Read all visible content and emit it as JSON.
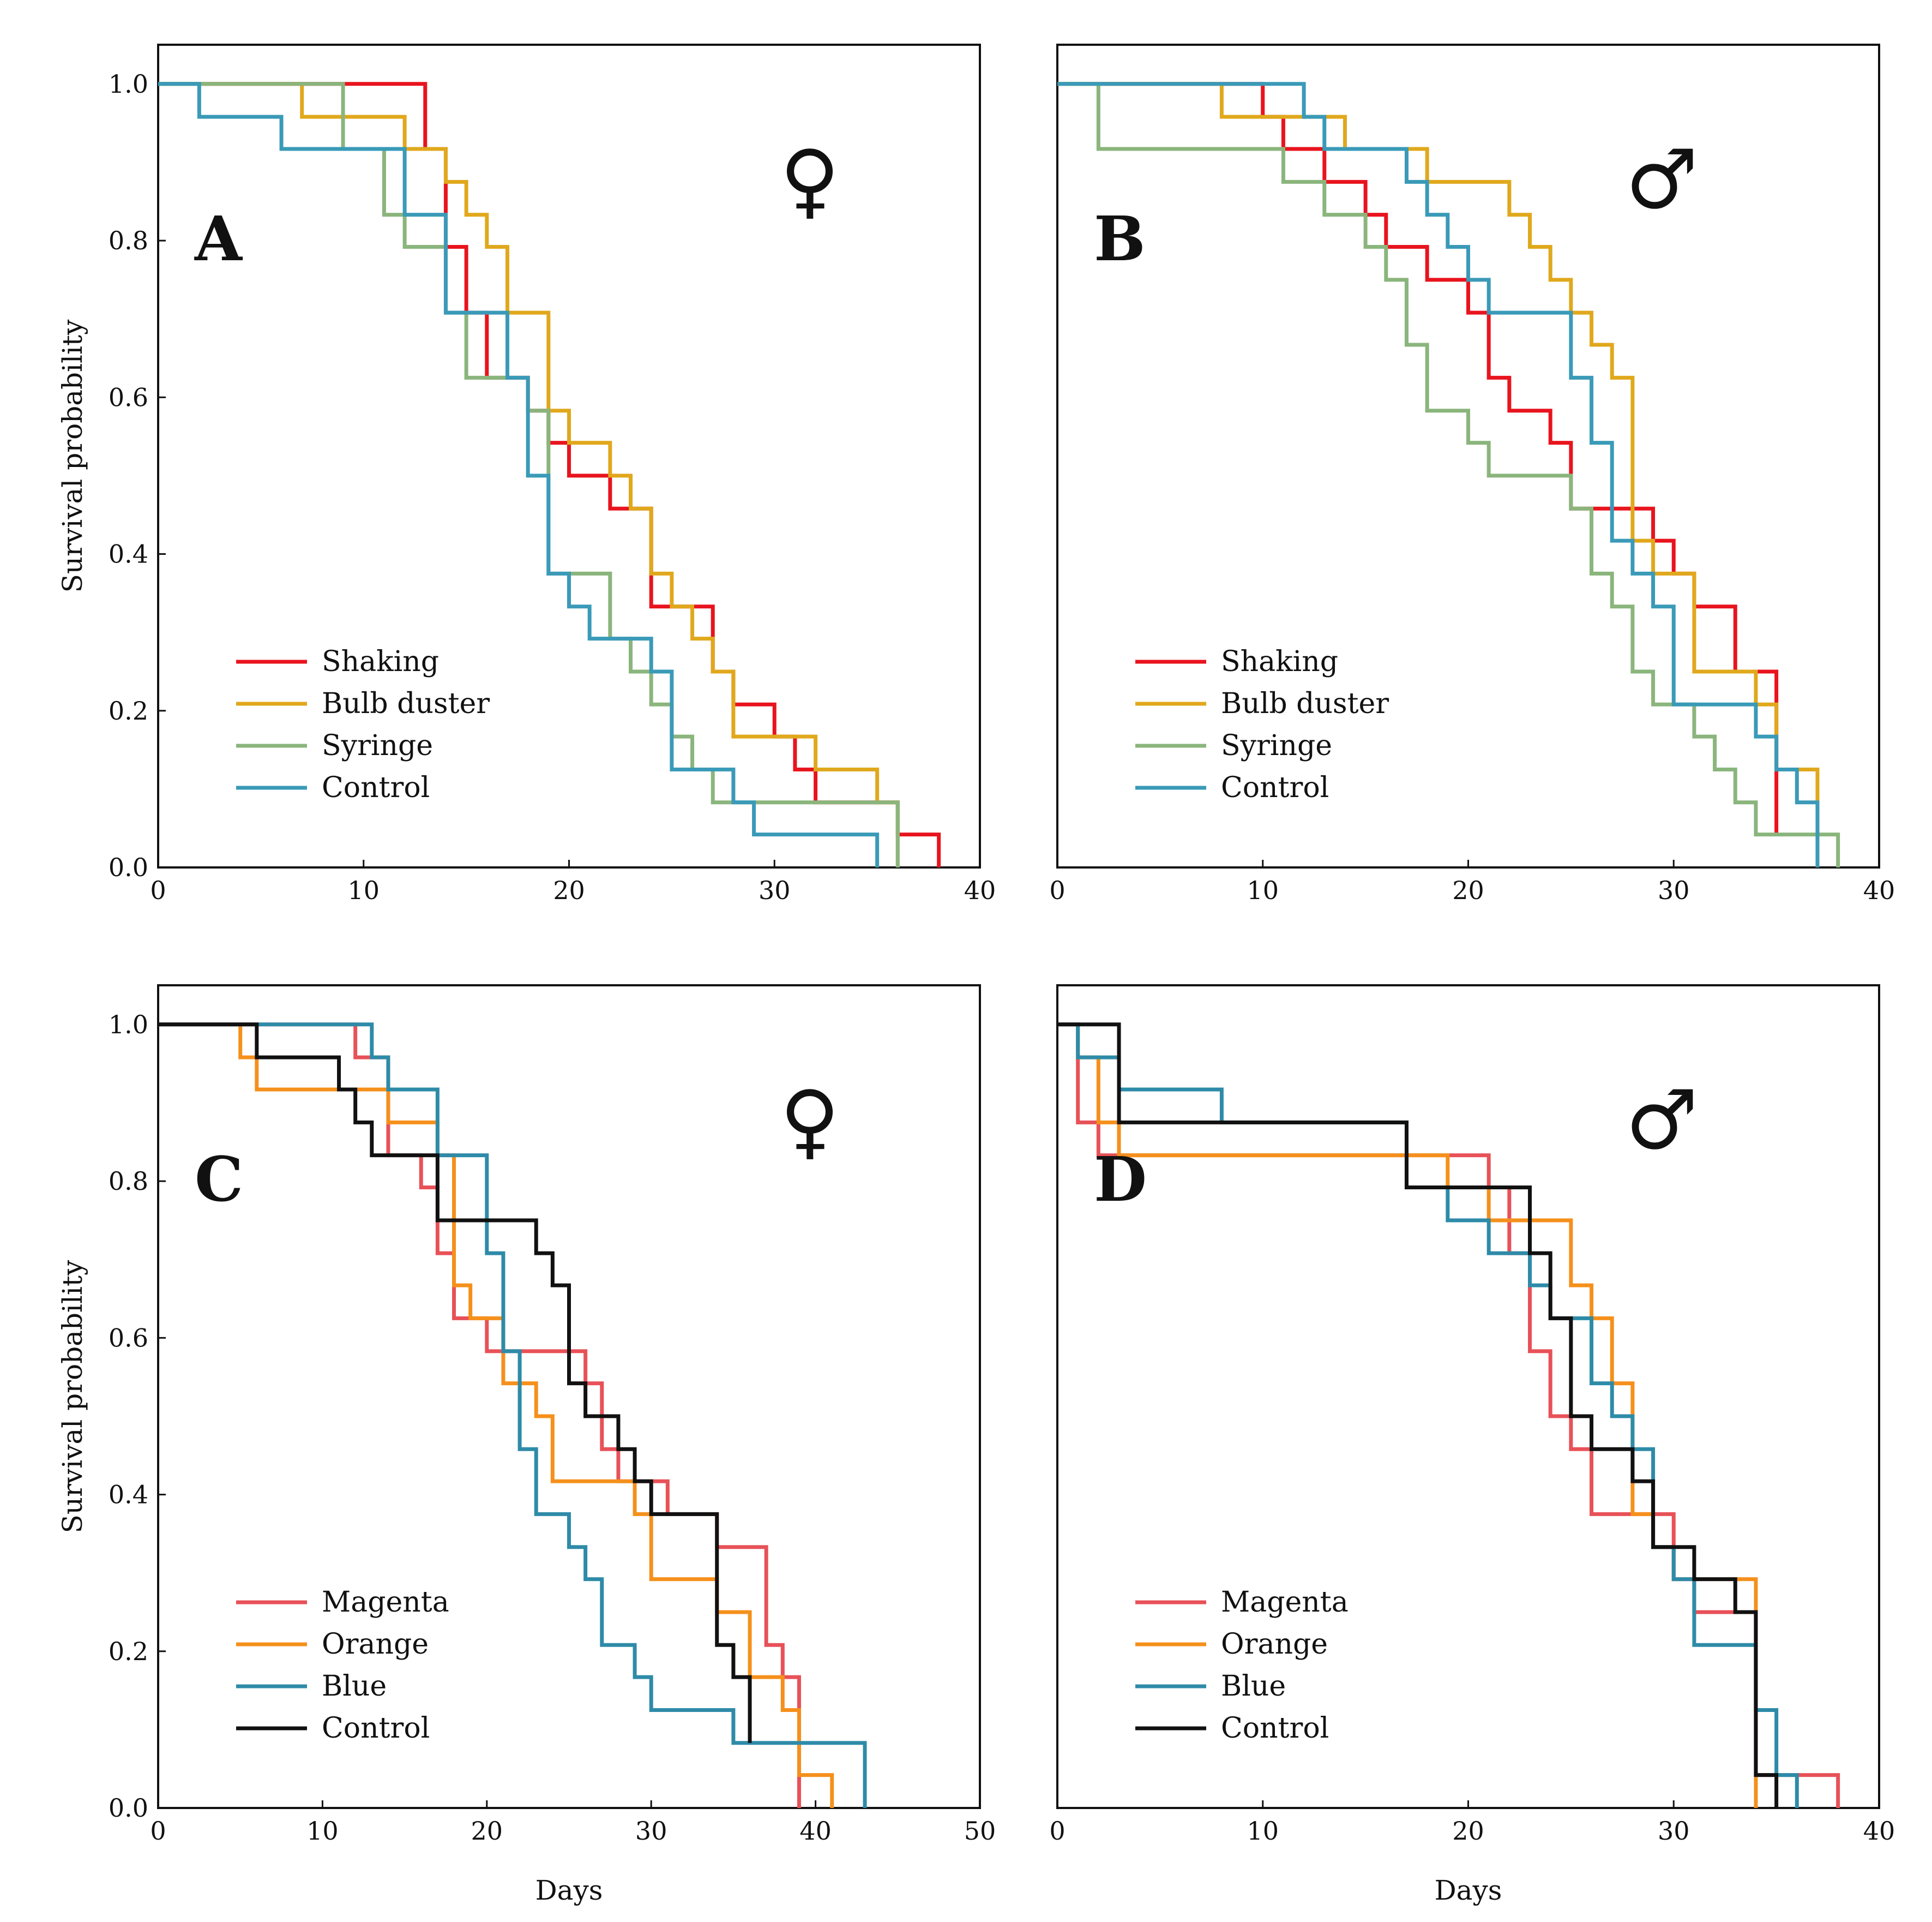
{
  "colors": {
    "shaking": "#e8141e",
    "bulb_duster": "#e0a81c",
    "syringe": "#8ab57c",
    "control_blue": "#3a9ab8",
    "magenta": "#e85158",
    "orange": "#f5901c",
    "blue": "#2e8ba8",
    "control_black": "#111111"
  },
  "chart_data": [
    {
      "type": "line",
      "step": true,
      "panel": "A",
      "sex_symbol": "♀",
      "xlabel": "",
      "ylabel": "Survival probability",
      "xlim": [
        0,
        40
      ],
      "ylim": [
        0,
        1.05
      ],
      "xticks": [
        "0",
        "10",
        "20",
        "30",
        "40"
      ],
      "yticks": [
        "0.0",
        "0.2",
        "0.4",
        "0.6",
        "0.8",
        "1.0"
      ],
      "legend_position": "bottom-left",
      "series": [
        {
          "name": "Shaking",
          "color_key": "shaking",
          "x": [
            0,
            13,
            14,
            15,
            16,
            18,
            19,
            20,
            22,
            24,
            25,
            27,
            28,
            30,
            31,
            32,
            36,
            38
          ],
          "y": [
            1.0,
            0.917,
            0.792,
            0.708,
            0.625,
            0.583,
            0.542,
            0.5,
            0.458,
            0.333,
            0.333,
            0.25,
            0.208,
            0.167,
            0.125,
            0.083,
            0.042,
            0.0
          ]
        },
        {
          "name": "Bulb duster",
          "color_key": "bulb_duster",
          "x": [
            0,
            7,
            12,
            14,
            15,
            16,
            17,
            19,
            20,
            22,
            23,
            24,
            25,
            26,
            27,
            28,
            32,
            35,
            36
          ],
          "y": [
            1.0,
            0.958,
            0.917,
            0.875,
            0.833,
            0.792,
            0.708,
            0.583,
            0.542,
            0.5,
            0.458,
            0.375,
            0.333,
            0.292,
            0.25,
            0.167,
            0.125,
            0.083,
            0.0
          ]
        },
        {
          "name": "Syringe",
          "color_key": "syringe",
          "x": [
            0,
            9,
            11,
            12,
            14,
            15,
            18,
            19,
            22,
            23,
            24,
            25,
            26,
            27,
            36
          ],
          "y": [
            1.0,
            0.917,
            0.833,
            0.792,
            0.708,
            0.625,
            0.583,
            0.375,
            0.292,
            0.25,
            0.208,
            0.167,
            0.125,
            0.083,
            0.0
          ]
        },
        {
          "name": "Control",
          "color_key": "control_blue",
          "x": [
            0,
            2,
            6,
            12,
            14,
            17,
            18,
            19,
            20,
            21,
            22,
            24,
            25,
            28,
            29,
            35
          ],
          "y": [
            1.0,
            0.958,
            0.917,
            0.833,
            0.708,
            0.625,
            0.5,
            0.375,
            0.333,
            0.292,
            0.292,
            0.25,
            0.125,
            0.083,
            0.042,
            0.0
          ]
        }
      ]
    },
    {
      "type": "line",
      "step": true,
      "panel": "B",
      "sex_symbol": "♂",
      "xlabel": "",
      "ylabel": "",
      "xlim": [
        0,
        40
      ],
      "ylim": [
        0,
        1.05
      ],
      "xticks": [
        "0",
        "10",
        "20",
        "30",
        "40"
      ],
      "yticks": [],
      "legend_position": "bottom-left",
      "series": [
        {
          "name": "Shaking",
          "color_key": "shaking",
          "x": [
            0,
            10,
            11,
            13,
            15,
            16,
            18,
            20,
            21,
            22,
            24,
            25,
            29,
            30,
            31,
            33,
            35
          ],
          "y": [
            1.0,
            0.958,
            0.917,
            0.875,
            0.833,
            0.792,
            0.75,
            0.708,
            0.625,
            0.583,
            0.542,
            0.458,
            0.417,
            0.375,
            0.333,
            0.25,
            0.042
          ]
        },
        {
          "name": "Bulb duster",
          "color_key": "bulb_duster",
          "x": [
            0,
            8,
            14,
            18,
            22,
            23,
            24,
            25,
            26,
            27,
            28,
            29,
            31,
            34,
            35,
            37
          ],
          "y": [
            1.0,
            0.958,
            0.917,
            0.875,
            0.833,
            0.792,
            0.75,
            0.708,
            0.667,
            0.625,
            0.417,
            0.375,
            0.25,
            0.208,
            0.125,
            0.0
          ]
        },
        {
          "name": "Syringe",
          "color_key": "syringe",
          "x": [
            0,
            2,
            11,
            13,
            15,
            16,
            17,
            18,
            20,
            21,
            25,
            26,
            27,
            28,
            29,
            31,
            32,
            33,
            34,
            38
          ],
          "y": [
            1.0,
            0.917,
            0.875,
            0.833,
            0.792,
            0.75,
            0.667,
            0.583,
            0.542,
            0.5,
            0.458,
            0.375,
            0.333,
            0.25,
            0.208,
            0.167,
            0.125,
            0.083,
            0.042,
            0.0
          ]
        },
        {
          "name": "Control",
          "color_key": "control_blue",
          "x": [
            0,
            12,
            13,
            17,
            18,
            19,
            20,
            21,
            25,
            26,
            27,
            28,
            29,
            30,
            34,
            35,
            36,
            37
          ],
          "y": [
            1.0,
            0.958,
            0.917,
            0.875,
            0.833,
            0.792,
            0.75,
            0.708,
            0.625,
            0.542,
            0.417,
            0.375,
            0.333,
            0.208,
            0.167,
            0.125,
            0.083,
            0.0
          ]
        }
      ]
    },
    {
      "type": "line",
      "step": true,
      "panel": "C",
      "sex_symbol": "♀",
      "xlabel": "Days",
      "ylabel": "Survival probability",
      "xlim": [
        0,
        50
      ],
      "ylim": [
        0,
        1.05
      ],
      "xticks": [
        "0",
        "10",
        "20",
        "30",
        "40",
        "50"
      ],
      "yticks": [
        "0.0",
        "0.2",
        "0.4",
        "0.6",
        "0.8",
        "1.0"
      ],
      "legend_position": "bottom-left",
      "series": [
        {
          "name": "Magenta",
          "color_key": "magenta",
          "x": [
            0,
            12,
            14,
            16,
            17,
            18,
            20,
            26,
            27,
            28,
            30,
            31,
            34,
            37,
            38,
            39
          ],
          "y": [
            1.0,
            0.958,
            0.833,
            0.792,
            0.708,
            0.625,
            0.583,
            0.542,
            0.458,
            0.417,
            0.417,
            0.375,
            0.333,
            0.208,
            0.167,
            0.0
          ]
        },
        {
          "name": "Orange",
          "color_key": "orange",
          "x": [
            0,
            5,
            6,
            14,
            17,
            18,
            19,
            21,
            23,
            24,
            29,
            30,
            34,
            36,
            38,
            39,
            41
          ],
          "y": [
            1.0,
            0.958,
            0.917,
            0.875,
            0.833,
            0.667,
            0.625,
            0.542,
            0.5,
            0.417,
            0.375,
            0.292,
            0.25,
            0.167,
            0.125,
            0.042,
            0.0
          ]
        },
        {
          "name": "Blue",
          "color_key": "blue",
          "x": [
            0,
            13,
            14,
            17,
            20,
            21,
            22,
            23,
            25,
            26,
            27,
            29,
            30,
            35,
            43
          ],
          "y": [
            1.0,
            0.958,
            0.917,
            0.833,
            0.708,
            0.583,
            0.458,
            0.375,
            0.333,
            0.292,
            0.208,
            0.167,
            0.125,
            0.083,
            0.0
          ]
        },
        {
          "name": "Control",
          "color_key": "control_black",
          "x": [
            0,
            6,
            11,
            12,
            13,
            17,
            23,
            24,
            25,
            26,
            28,
            29,
            30,
            34,
            35,
            36
          ],
          "y": [
            1.0,
            0.958,
            0.917,
            0.875,
            0.833,
            0.75,
            0.708,
            0.667,
            0.542,
            0.5,
            0.458,
            0.417,
            0.375,
            0.208,
            0.167,
            0.083
          ]
        }
      ]
    },
    {
      "type": "line",
      "step": true,
      "panel": "D",
      "sex_symbol": "♂",
      "xlabel": "Days",
      "ylabel": "",
      "xlim": [
        0,
        40
      ],
      "ylim": [
        0,
        1.05
      ],
      "xticks": [
        "0",
        "10",
        "20",
        "30",
        "40"
      ],
      "yticks": [],
      "legend_position": "bottom-left",
      "series": [
        {
          "name": "Magenta",
          "color_key": "magenta",
          "x": [
            0,
            1,
            2,
            21,
            22,
            23,
            24,
            25,
            26,
            30,
            31,
            34,
            36,
            38
          ],
          "y": [
            1.0,
            0.875,
            0.833,
            0.792,
            0.708,
            0.583,
            0.5,
            0.458,
            0.375,
            0.292,
            0.25,
            0.042,
            0.042,
            0.0
          ]
        },
        {
          "name": "Orange",
          "color_key": "orange",
          "x": [
            0,
            1,
            2,
            3,
            14,
            19,
            21,
            25,
            26,
            27,
            28,
            29,
            30,
            34
          ],
          "y": [
            1.0,
            0.958,
            0.875,
            0.833,
            0.833,
            0.792,
            0.75,
            0.667,
            0.625,
            0.542,
            0.375,
            0.333,
            0.292,
            0.0
          ]
        },
        {
          "name": "Blue",
          "color_key": "blue",
          "x": [
            0,
            1,
            3,
            8,
            17,
            19,
            21,
            23,
            24,
            26,
            27,
            28,
            29,
            30,
            31,
            34,
            35,
            36
          ],
          "y": [
            1.0,
            0.958,
            0.917,
            0.875,
            0.792,
            0.75,
            0.708,
            0.667,
            0.625,
            0.542,
            0.5,
            0.458,
            0.333,
            0.292,
            0.208,
            0.125,
            0.042,
            0.0
          ]
        },
        {
          "name": "Control",
          "color_key": "control_black",
          "x": [
            0,
            3,
            14,
            17,
            22,
            23,
            24,
            25,
            26,
            28,
            29,
            31,
            33,
            34,
            35
          ],
          "y": [
            1.0,
            0.875,
            0.875,
            0.792,
            0.792,
            0.708,
            0.625,
            0.5,
            0.458,
            0.417,
            0.333,
            0.292,
            0.25,
            0.042,
            0.0
          ]
        }
      ]
    }
  ]
}
